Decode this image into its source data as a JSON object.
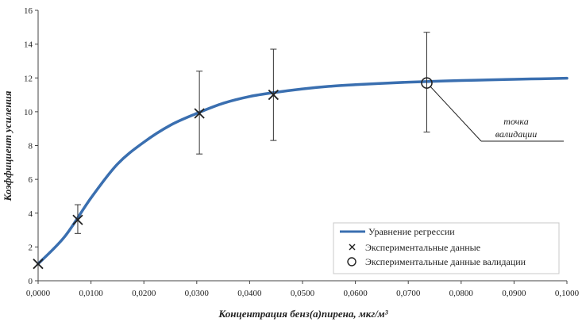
{
  "chart_data": {
    "type": "line",
    "xlabel": "Концентрация бенз(а)пирена, мкг/м³",
    "ylabel": "Коэффициент усиления",
    "xlim": [
      0,
      0.1
    ],
    "ylim": [
      0,
      16
    ],
    "x_ticks": [
      "0,0000",
      "0,0100",
      "0,0200",
      "0,0300",
      "0,0400",
      "0,0500",
      "0,0600",
      "0,0700",
      "0,0800",
      "0,0900",
      "0,1000"
    ],
    "y_ticks": [
      "0",
      "2",
      "4",
      "6",
      "8",
      "10",
      "12",
      "14",
      "16"
    ],
    "grid": false,
    "legend_position": "bottom-right",
    "series": [
      {
        "name": "Уравнение регрессии",
        "color": "#3a6fb0",
        "x": [
          0,
          0.005,
          0.01,
          0.015,
          0.02,
          0.025,
          0.03,
          0.035,
          0.04,
          0.045,
          0.05,
          0.055,
          0.06,
          0.065,
          0.07,
          0.075,
          0.08,
          0.085,
          0.09,
          0.095,
          0.1
        ],
        "y": [
          1.0,
          2.6,
          4.9,
          6.9,
          8.2,
          9.2,
          9.9,
          10.5,
          10.9,
          11.15,
          11.35,
          11.5,
          11.6,
          11.68,
          11.75,
          11.8,
          11.85,
          11.88,
          11.92,
          11.95,
          11.98
        ]
      },
      {
        "name": "Экспериментальные данные",
        "marker": "x",
        "x": [
          0,
          0.0075,
          0.0305,
          0.0445
        ],
        "y": [
          1.0,
          3.6,
          9.9,
          11.0
        ],
        "err_low": [
          null,
          2.8,
          7.5,
          8.3
        ],
        "err_high": [
          null,
          4.5,
          12.4,
          13.7
        ]
      },
      {
        "name": "Экспериментальные данные валидации",
        "marker": "o",
        "x": [
          0.0735
        ],
        "y": [
          11.7
        ],
        "err_low": [
          8.8
        ],
        "err_high": [
          14.7
        ]
      }
    ],
    "annotation": {
      "text_line1": "точка",
      "text_line2": "валидации",
      "x": 0.0735,
      "y": 11.7
    }
  }
}
